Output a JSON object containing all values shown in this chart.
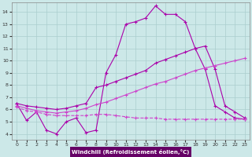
{
  "xlabel": "Windchill (Refroidissement éolien,°C)",
  "background_color": "#cce8e8",
  "grid_color": "#aacece",
  "line_color": "#aa00aa",
  "xlim": [
    -0.5,
    23.5
  ],
  "ylim": [
    3.5,
    14.8
  ],
  "yticks": [
    4,
    5,
    6,
    7,
    8,
    9,
    10,
    11,
    12,
    13,
    14
  ],
  "xticks": [
    0,
    1,
    2,
    3,
    4,
    5,
    6,
    7,
    8,
    9,
    10,
    11,
    12,
    13,
    14,
    15,
    16,
    17,
    18,
    19,
    20,
    21,
    22,
    23
  ],
  "line1_x": [
    0,
    1,
    2,
    3,
    4,
    5,
    6,
    7,
    8,
    9,
    10,
    11,
    12,
    13,
    14,
    15,
    16,
    17,
    18,
    19,
    20,
    21,
    22,
    23
  ],
  "line1_y": [
    6.5,
    5.1,
    5.8,
    4.3,
    4.0,
    5.0,
    5.3,
    4.1,
    4.3,
    9.0,
    10.5,
    13.0,
    13.2,
    13.5,
    14.5,
    13.8,
    13.8,
    13.2,
    11.0,
    9.3,
    6.3,
    5.8,
    5.3,
    5.2
  ],
  "line2_x": [
    0,
    1,
    2,
    3,
    4,
    5,
    6,
    7,
    8,
    9,
    10,
    11,
    12,
    13,
    14,
    15,
    16,
    17,
    18,
    19,
    20,
    21,
    22,
    23
  ],
  "line2_y": [
    6.5,
    6.3,
    6.2,
    6.1,
    6.0,
    6.1,
    6.3,
    6.5,
    7.8,
    8.0,
    8.3,
    8.6,
    8.9,
    9.2,
    9.8,
    10.1,
    10.4,
    10.7,
    11.0,
    11.2,
    9.3,
    6.3,
    5.8,
    5.3
  ],
  "line3_x": [
    0,
    1,
    2,
    3,
    4,
    5,
    6,
    7,
    8,
    9,
    10,
    11,
    12,
    13,
    14,
    15,
    16,
    17,
    18,
    19,
    20,
    21,
    22,
    23
  ],
  "line3_y": [
    6.3,
    6.1,
    5.9,
    5.8,
    5.7,
    5.8,
    5.9,
    6.1,
    6.4,
    6.6,
    6.9,
    7.2,
    7.5,
    7.8,
    8.1,
    8.3,
    8.6,
    8.9,
    9.2,
    9.4,
    9.6,
    9.8,
    10.0,
    10.2
  ],
  "line4_x": [
    0,
    1,
    2,
    3,
    4,
    5,
    6,
    7,
    8,
    9,
    10,
    11,
    12,
    13,
    14,
    15,
    16,
    17,
    18,
    19,
    20,
    21,
    22,
    23
  ],
  "line4_y": [
    6.2,
    5.9,
    5.8,
    5.6,
    5.5,
    5.5,
    5.5,
    5.5,
    5.6,
    5.6,
    5.5,
    5.4,
    5.3,
    5.3,
    5.3,
    5.2,
    5.2,
    5.2,
    5.2,
    5.2,
    5.2,
    5.2,
    5.2,
    5.2
  ]
}
